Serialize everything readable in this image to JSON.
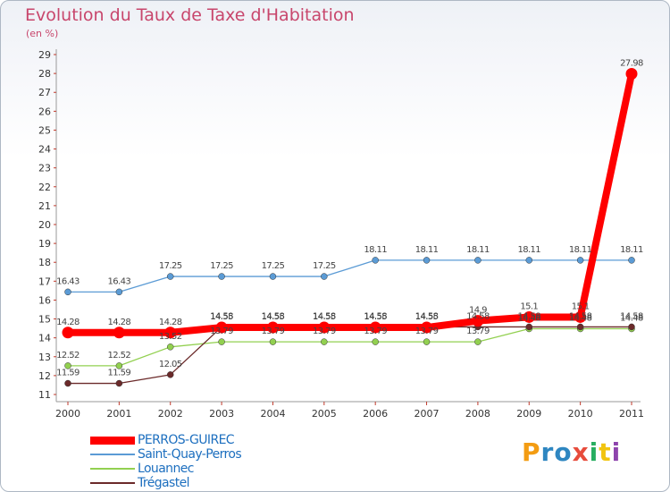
{
  "chart_data": {
    "type": "line",
    "title": "Evolution du Taux de Taxe d'Habitation",
    "subtitle": "(en %)",
    "xlabel": "",
    "ylabel": "",
    "x": [
      "2000",
      "2001",
      "2002",
      "2003",
      "2004",
      "2005",
      "2006",
      "2007",
      "2008",
      "2009",
      "2010",
      "2011"
    ],
    "ylim": [
      11,
      29
    ],
    "yticks": [
      11,
      12,
      13,
      14,
      15,
      16,
      17,
      18,
      19,
      20,
      21,
      22,
      23,
      24,
      25,
      26,
      27,
      28,
      29
    ],
    "series": [
      {
        "name": "PERROS-GUIREC",
        "color": "#ff0000",
        "values": [
          14.28,
          14.28,
          14.28,
          14.55,
          14.55,
          14.55,
          14.55,
          14.55,
          14.9,
          15.1,
          15.1,
          27.98
        ],
        "labels": [
          "14.28",
          "14.28",
          "14.28",
          "14.55",
          "14.55",
          "14.55",
          "14.55",
          "14.55",
          "14.9",
          "15.1",
          "15.1",
          "27.98"
        ]
      },
      {
        "name": "Saint-Quay-Perros",
        "color": "#5b9bd5",
        "values": [
          16.43,
          16.43,
          17.25,
          17.25,
          17.25,
          17.25,
          18.11,
          18.11,
          18.11,
          18.11,
          18.11,
          18.11
        ],
        "labels": [
          "16.43",
          "16.43",
          "17.25",
          "17.25",
          "17.25",
          "17.25",
          "18.11",
          "18.11",
          "18.11",
          "18.11",
          "18.11",
          "18.11"
        ]
      },
      {
        "name": "Louannec",
        "color": "#92d050",
        "values": [
          12.52,
          12.52,
          13.52,
          13.79,
          13.79,
          13.79,
          13.79,
          13.79,
          13.79,
          14.48,
          14.48,
          14.48
        ],
        "labels": [
          "12.52",
          "12.52",
          "13.52",
          "13.79",
          "13.79",
          "13.79",
          "13.79",
          "13.79",
          "13.79",
          "14.48",
          "14.48",
          "14.48"
        ]
      },
      {
        "name": "Trégastel",
        "color": "#6b2a2a",
        "values": [
          11.59,
          11.59,
          12.05,
          14.58,
          14.58,
          14.58,
          14.58,
          14.58,
          14.58,
          14.58,
          14.58,
          14.58
        ],
        "labels": [
          "11.59",
          "11.59",
          "12.05",
          "14.58",
          "14.58",
          "14.58",
          "14.58",
          "14.58",
          "14.58",
          "14.58",
          "14.58",
          "14.58"
        ]
      }
    ],
    "grid": false,
    "legend_position": "bottom-left"
  },
  "logo": {
    "letters": [
      "P",
      "r",
      "o",
      "x",
      "i",
      "t",
      "i"
    ],
    "colors": [
      "#f39c12",
      "#2e86c1",
      "#2e86c1",
      "#e74c3c",
      "#27ae60",
      "#f1c40f",
      "#8e44ad"
    ]
  }
}
